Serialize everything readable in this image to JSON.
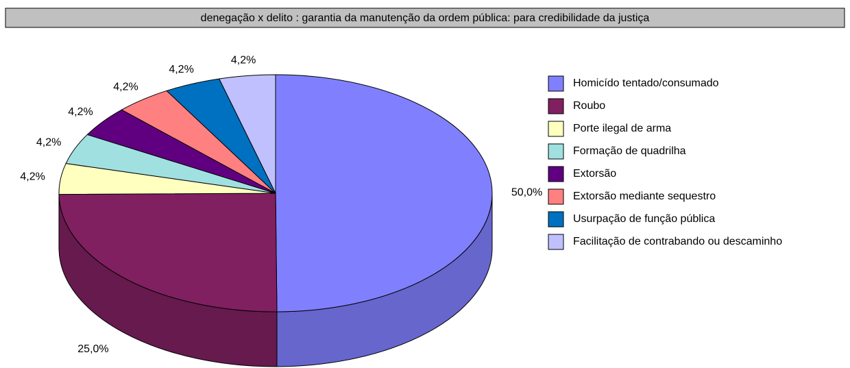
{
  "chart_data": {
    "type": "pie3d",
    "title": "denegação x delito : garantia da manutenção da ordem pública: para credibilidade da justiça",
    "categories": [
      "Homicído tentado/consumado",
      "Roubo",
      "Porte ilegal de arma",
      "Formação de quadrilha",
      "Extorsão",
      "Extorsão mediante sequestro",
      "Usurpação de função pública",
      "Facilitação de contrabando ou descaminho"
    ],
    "values": [
      50,
      25,
      4.2,
      4.2,
      4.2,
      4.2,
      4.2,
      4.2
    ],
    "value_labels": [
      "50,0%",
      "25,0%",
      "4,2%",
      "4,2%",
      "4,2%",
      "4,2%",
      "4,2%",
      "4,2%"
    ],
    "colors": [
      "#8080ff",
      "#802060",
      "#ffffc0",
      "#a0e0e0",
      "#600080",
      "#ff8080",
      "#0070c0",
      "#c0c0ff"
    ],
    "legend": "right"
  }
}
